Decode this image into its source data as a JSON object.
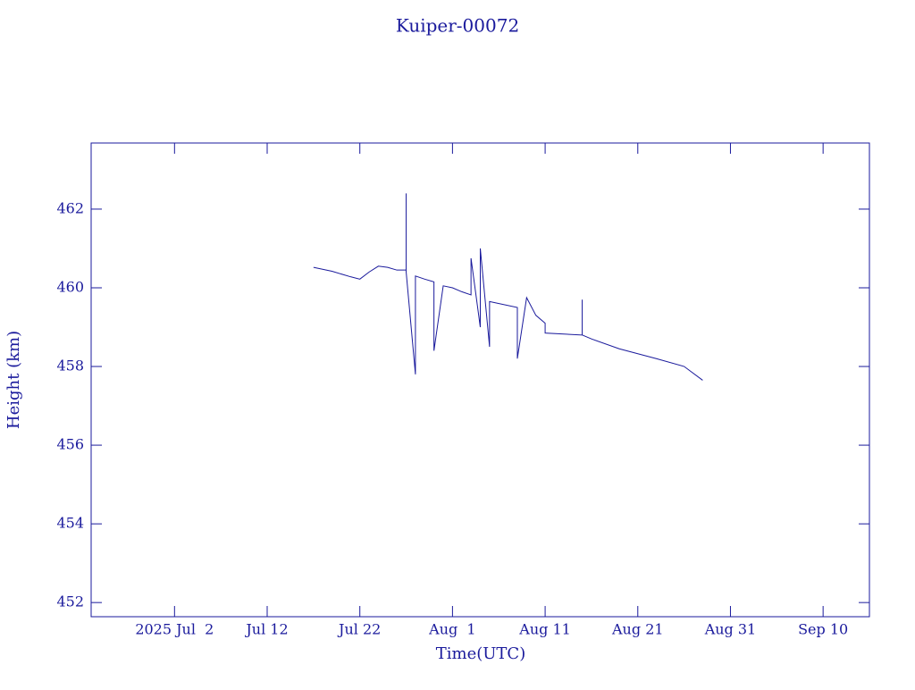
{
  "chart_data": {
    "type": "line",
    "title": "Kuiper-00072",
    "x_label": "Time(UTC)",
    "y_label": "Height (km)",
    "color": "#1a1a9c",
    "xlim": [
      "2025-06-23",
      "2025-09-15"
    ],
    "ylim": [
      451.64,
      463.68
    ],
    "xticks": [
      {
        "value": "2025-07-02",
        "label": "2025 Jul  2"
      },
      {
        "value": "2025-07-12",
        "label": "Jul 12"
      },
      {
        "value": "2025-07-22",
        "label": "Jul 22"
      },
      {
        "value": "2025-08-01",
        "label": "Aug  1"
      },
      {
        "value": "2025-08-11",
        "label": "Aug 11"
      },
      {
        "value": "2025-08-21",
        "label": "Aug 21"
      },
      {
        "value": "2025-08-31",
        "label": "Aug 31"
      },
      {
        "value": "2025-09-10",
        "label": "Sep 10"
      }
    ],
    "yticks": [
      452,
      454,
      456,
      458,
      460,
      462
    ],
    "x": [
      "2025-07-17",
      "2025-07-19",
      "2025-07-21",
      "2025-07-22",
      "2025-07-23",
      "2025-07-24",
      "2025-07-25",
      "2025-07-26",
      "2025-07-27",
      "2025-07-27",
      "2025-07-27",
      "2025-07-28",
      "2025-07-28",
      "2025-07-29",
      "2025-07-30",
      "2025-07-30",
      "2025-07-31",
      "2025-08-01",
      "2025-08-02",
      "2025-08-03",
      "2025-08-03",
      "2025-08-04",
      "2025-08-04",
      "2025-08-05",
      "2025-08-05",
      "2025-08-08",
      "2025-08-08",
      "2025-08-09",
      "2025-08-10",
      "2025-08-11",
      "2025-08-11",
      "2025-08-15",
      "2025-08-15",
      "2025-08-15",
      "2025-08-16",
      "2025-08-19",
      "2025-08-23",
      "2025-08-26",
      "2025-08-28"
    ],
    "values": [
      460.52,
      460.42,
      460.28,
      460.22,
      460.4,
      460.55,
      460.52,
      460.45,
      460.45,
      462.4,
      460.4,
      457.8,
      460.3,
      460.22,
      460.15,
      458.4,
      460.05,
      460.0,
      459.9,
      459.82,
      460.75,
      459.0,
      461.0,
      458.5,
      459.65,
      459.5,
      458.2,
      459.75,
      459.3,
      459.1,
      458.85,
      458.8,
      459.7,
      458.8,
      458.7,
      458.45,
      458.2,
      458.0,
      457.65
    ]
  }
}
